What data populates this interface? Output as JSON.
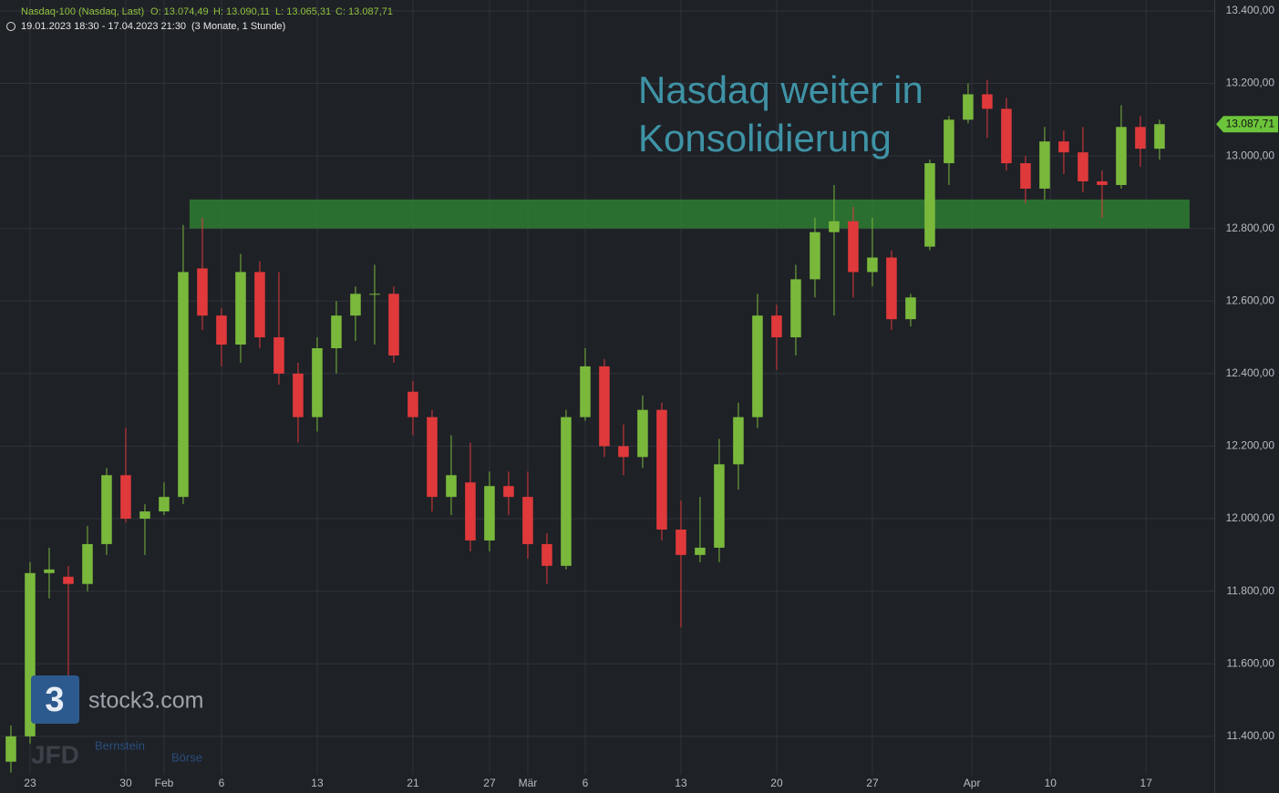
{
  "chart_data": {
    "type": "candlestick",
    "header": {
      "instrument": "Nasdaq-100 (Nasdaq, Last)",
      "open": "O: 13.074,49",
      "high": "H: 13.090,11",
      "low": "L: 13.065,31",
      "close": "C: 13.087,71",
      "range": "19.01.2023 18:30 - 17.04.2023 21:30",
      "period": "(3 Monate, 1 Stunde)"
    },
    "annotation": [
      "Nasdaq weiter in",
      "Konsolidierung"
    ],
    "watermarks": {
      "logo": "3",
      "brand": "stock3.com",
      "partner1": "JFD",
      "partner2": "Bernstein",
      "partner3": "Börse"
    },
    "x": [
      -1,
      0,
      1,
      2,
      3,
      4,
      5,
      6,
      7,
      8,
      9,
      10,
      11,
      12,
      13,
      14,
      15,
      16,
      17,
      18,
      19,
      20,
      21,
      22,
      23,
      24,
      25,
      26,
      27,
      28,
      29,
      30,
      31,
      32,
      33,
      34,
      35,
      36,
      37,
      38,
      39,
      40,
      41,
      42,
      43,
      44,
      45,
      46,
      47,
      48,
      49,
      50,
      51,
      52,
      53,
      54,
      55,
      56,
      57,
      58,
      59
    ],
    "open": [
      11330,
      11400,
      11850,
      11840,
      11820,
      11930,
      12120,
      12000,
      12020,
      12060,
      12690,
      12560,
      12480,
      12680,
      12500,
      12400,
      12280,
      12470,
      12560,
      12620,
      12620,
      12350,
      12280,
      12060,
      12100,
      11940,
      12090,
      12060,
      11930,
      11870,
      12280,
      12420,
      12200,
      12170,
      12300,
      11970,
      11900,
      11920,
      12150,
      12280,
      12560,
      12500,
      12660,
      12790,
      12820,
      12680,
      12720,
      12550,
      12750,
      12980,
      13100,
      13170,
      13130,
      12980,
      12910,
      13040,
      13010,
      12930,
      12920,
      13080,
      13020
    ],
    "high": [
      11430,
      11880,
      11920,
      11870,
      11980,
      12140,
      12250,
      12040,
      12100,
      12810,
      12830,
      12580,
      12730,
      12710,
      12680,
      12430,
      12500,
      12600,
      12640,
      12700,
      12640,
      12380,
      12300,
      12230,
      12210,
      12130,
      12130,
      12130,
      11960,
      12300,
      12470,
      12440,
      12260,
      12340,
      12320,
      12050,
      12060,
      12220,
      12320,
      12620,
      12590,
      12700,
      12830,
      12920,
      12860,
      12830,
      12740,
      12620,
      12990,
      13110,
      13200,
      13210,
      13160,
      13000,
      13080,
      13070,
      13080,
      12960,
      13140,
      13110,
      13100
    ],
    "low": [
      11300,
      11380,
      11780,
      11560,
      11800,
      11900,
      11990,
      11900,
      12010,
      12040,
      12520,
      12420,
      12430,
      12470,
      12370,
      12210,
      12240,
      12400,
      12490,
      12480,
      12430,
      12230,
      12020,
      12010,
      11910,
      11910,
      12010,
      11890,
      11820,
      11860,
      12270,
      12170,
      12120,
      12140,
      11940,
      11700,
      11880,
      11880,
      12080,
      12250,
      12410,
      12450,
      12610,
      12560,
      12610,
      12640,
      12520,
      12530,
      12740,
      12920,
      13090,
      13050,
      12960,
      12870,
      12880,
      12950,
      12900,
      12830,
      12910,
      12970,
      12990
    ],
    "close": [
      11400,
      11850,
      11860,
      11820,
      11930,
      12120,
      12000,
      12020,
      12060,
      12680,
      12560,
      12480,
      12680,
      12500,
      12400,
      12280,
      12470,
      12560,
      12620,
      12620,
      12450,
      12280,
      12060,
      12120,
      11940,
      12090,
      12060,
      11930,
      11870,
      12280,
      12420,
      12200,
      12170,
      12300,
      11970,
      11900,
      11920,
      12150,
      12280,
      12560,
      12500,
      12660,
      12790,
      12820,
      12680,
      12720,
      12550,
      12610,
      12980,
      13100,
      13170,
      13130,
      12980,
      12910,
      13040,
      13010,
      12930,
      12920,
      13080,
      13020,
      13087.71
    ],
    "up_color": "#7ab83c",
    "down_color": "#e0393b",
    "zone": {
      "y": [
        12800,
        12880
      ],
      "x": [
        8.33,
        60.57
      ],
      "color": "#2e7d32"
    },
    "last_price": {
      "value": 13087.71,
      "label": "13.087,71",
      "color": "#6cc43a"
    },
    "xlim": [
      -1.57,
      61.86
    ],
    "ylim": [
      11294,
      13430
    ],
    "xticks": [
      {
        "value": 0,
        "label": "23"
      },
      {
        "value": 5,
        "label": "30"
      },
      {
        "value": 7,
        "label": "Feb"
      },
      {
        "value": 10,
        "label": "6"
      },
      {
        "value": 15,
        "label": "13"
      },
      {
        "value": 20,
        "label": "21"
      },
      {
        "value": 24,
        "label": "27"
      },
      {
        "value": 26,
        "label": "Mär"
      },
      {
        "value": 29,
        "label": "6"
      },
      {
        "value": 34,
        "label": "13"
      },
      {
        "value": 39,
        "label": "20"
      },
      {
        "value": 44,
        "label": "27"
      },
      {
        "value": 49.2,
        "label": "Apr"
      },
      {
        "value": 53.3,
        "label": "10"
      },
      {
        "value": 58.3,
        "label": "17"
      }
    ],
    "yticks": [
      {
        "value": 11400,
        "label": "11.400,00"
      },
      {
        "value": 11600,
        "label": "11.600,00"
      },
      {
        "value": 11800,
        "label": "11.800,00"
      },
      {
        "value": 12000,
        "label": "12.000,00"
      },
      {
        "value": 12200,
        "label": "12.200,00"
      },
      {
        "value": 12400,
        "label": "12.400,00"
      },
      {
        "value": 12600,
        "label": "12.600,00"
      },
      {
        "value": 12800,
        "label": "12.800,00"
      },
      {
        "value": 13000,
        "label": "13.000,00"
      },
      {
        "value": 13200,
        "label": "13.200,00"
      },
      {
        "value": 13400,
        "label": "13.400,00"
      }
    ],
    "grid": true
  }
}
